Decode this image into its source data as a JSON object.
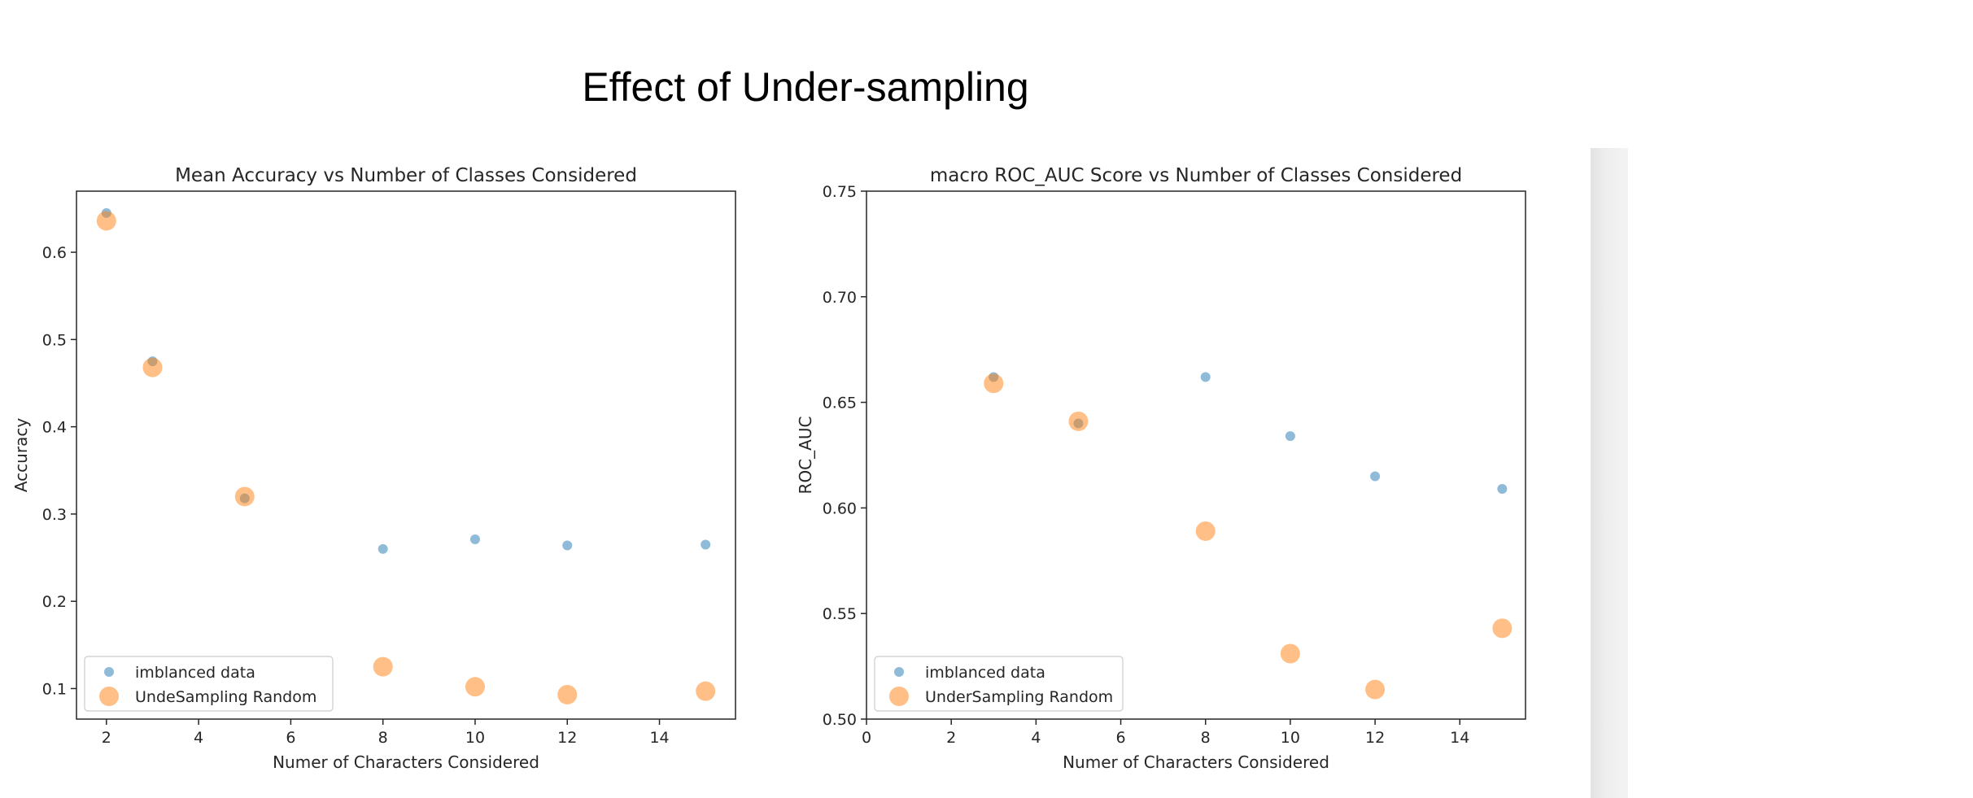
{
  "slide": {
    "title": "Effect of Under-sampling"
  },
  "colors": {
    "imbalanced": "#1f77b4",
    "undersampled": "#ff7f0e",
    "axis": "#262626"
  },
  "chart_data": [
    {
      "type": "scatter",
      "title": "Mean Accuracy vs Number of Classes Considered",
      "xlabel": "Numer of Characters Considered",
      "ylabel": "Accuracy",
      "xlim": [
        1.35,
        15.65
      ],
      "ylim": [
        0.065,
        0.67
      ],
      "xticks": [
        2,
        4,
        6,
        8,
        10,
        12,
        14
      ],
      "yticks": [
        0.1,
        0.2,
        0.3,
        0.4,
        0.5,
        0.6
      ],
      "ytick_labels": [
        "0.1",
        "0.2",
        "0.3",
        "0.4",
        "0.5",
        "0.6"
      ],
      "grid": false,
      "legend_position": "lower-left",
      "series": [
        {
          "name": "imblanced data",
          "color": "#1f77b4",
          "x": [
            2,
            3,
            5,
            8,
            10,
            12,
            15
          ],
          "y": [
            0.645,
            0.475,
            0.318,
            0.26,
            0.271,
            0.264,
            0.265
          ]
        },
        {
          "name": "UndeSampling Random",
          "color": "#ff7f0e",
          "x": [
            2,
            3,
            5,
            8,
            10,
            12,
            15
          ],
          "y": [
            0.636,
            0.468,
            0.32,
            0.125,
            0.102,
            0.093,
            0.097
          ]
        }
      ]
    },
    {
      "type": "scatter",
      "title": "macro ROC_AUC Score vs Number of Classes Considered",
      "xlabel": "Numer of Characters Considered",
      "ylabel": "ROC_AUC",
      "xlim": [
        0,
        15.55
      ],
      "ylim": [
        0.5,
        0.75
      ],
      "xticks": [
        0,
        2,
        4,
        6,
        8,
        10,
        12,
        14
      ],
      "yticks": [
        0.5,
        0.55,
        0.6,
        0.65,
        0.7,
        0.75
      ],
      "ytick_labels": [
        "0.50",
        "0.55",
        "0.60",
        "0.65",
        "0.70",
        "0.75"
      ],
      "grid": false,
      "legend_position": "lower-left",
      "series": [
        {
          "name": "imblanced data",
          "color": "#1f77b4",
          "x": [
            3,
            5,
            8,
            10,
            12,
            15
          ],
          "y": [
            0.662,
            0.64,
            0.662,
            0.634,
            0.615,
            0.609
          ]
        },
        {
          "name": "UnderSampling Random",
          "color": "#ff7f0e",
          "x": [
            3,
            5,
            8,
            10,
            12,
            15
          ],
          "y": [
            0.659,
            0.641,
            0.589,
            0.531,
            0.514,
            0.543
          ]
        }
      ]
    }
  ]
}
